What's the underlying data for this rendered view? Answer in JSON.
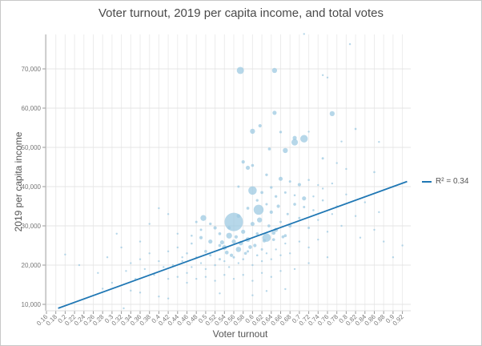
{
  "chart_data": {
    "type": "scatter",
    "title": "Voter turnout, 2019 per capita income, and total votes",
    "xlabel": "Voter turnout",
    "ylabel": "2019 per capita income",
    "xlim": [
      0.16,
      0.93
    ],
    "ylim": [
      8400,
      78700
    ],
    "x_ticks": [
      "0.16",
      "0.18",
      "0.2",
      "0.22",
      "0.24",
      "0.26",
      "0.28",
      "0.3",
      "0.32",
      "0.34",
      "0.36",
      "0.38",
      "0.4",
      "0.42",
      "0.44",
      "0.46",
      "0.48",
      "0.5",
      "0.52",
      "0.54",
      "0.56",
      "0.58",
      "0.6",
      "0.62",
      "0.64",
      "0.66",
      "0.68",
      "0.7",
      "0.72",
      "0.74",
      "0.76",
      "0.78",
      "0.8",
      "0.82",
      "0.84",
      "0.86",
      "0.88",
      "0.9",
      "0.92"
    ],
    "y_ticks": [
      "10,000",
      "20,000",
      "30,000",
      "40,000",
      "50,000",
      "60,000",
      "70,000"
    ],
    "y_tick_values": [
      10000,
      20000,
      30000,
      40000,
      50000,
      60000,
      70000
    ],
    "grid": true,
    "point_color": "#9ecae1",
    "size_field": "total votes",
    "points_fields": [
      "voter turnout",
      "2019 per capita income",
      "total votes"
    ],
    "points": [
      [
        0.574,
        69600,
        180000
      ],
      [
        0.647,
        69600,
        90000
      ],
      [
        0.71,
        78900,
        8000
      ],
      [
        0.808,
        76300,
        6000
      ],
      [
        0.75,
        68400,
        8000
      ],
      [
        0.76,
        67800,
        6000
      ],
      [
        0.647,
        58800,
        60000
      ],
      [
        0.77,
        58600,
        90000
      ],
      [
        0.66,
        53900,
        25000
      ],
      [
        0.616,
        55500,
        40000
      ],
      [
        0.6,
        54100,
        90000
      ],
      [
        0.72,
        54000,
        12000
      ],
      [
        0.82,
        54700,
        15000
      ],
      [
        0.69,
        52400,
        60000
      ],
      [
        0.71,
        52200,
        200000
      ],
      [
        0.69,
        51300,
        150000
      ],
      [
        0.79,
        51500,
        8000
      ],
      [
        0.87,
        51400,
        6000
      ],
      [
        0.67,
        49200,
        90000
      ],
      [
        0.636,
        49600,
        30000
      ],
      [
        0.58,
        46300,
        40000
      ],
      [
        0.59,
        44800,
        60000
      ],
      [
        0.6,
        45400,
        30000
      ],
      [
        0.75,
        47200,
        20000
      ],
      [
        0.78,
        46000,
        8000
      ],
      [
        0.8,
        44500,
        10000
      ],
      [
        0.86,
        43700,
        15000
      ],
      [
        0.63,
        43000,
        25000
      ],
      [
        0.66,
        42000,
        60000
      ],
      [
        0.68,
        41300,
        20000
      ],
      [
        0.7,
        40500,
        40000
      ],
      [
        0.72,
        41700,
        15000
      ],
      [
        0.74,
        40400,
        12000
      ],
      [
        0.77,
        40800,
        10000
      ],
      [
        0.6,
        39000,
        250000
      ],
      [
        0.613,
        34100,
        350000
      ],
      [
        0.56,
        31000,
        1200000
      ],
      [
        0.495,
        32000,
        120000
      ],
      [
        0.62,
        38500,
        30000
      ],
      [
        0.57,
        40000,
        20000
      ],
      [
        0.64,
        39800,
        25000
      ],
      [
        0.31,
        28000,
        6000
      ],
      [
        0.23,
        20000,
        5000
      ],
      [
        0.2,
        22700,
        5000
      ],
      [
        0.27,
        18000,
        4000
      ],
      [
        0.29,
        22000,
        4000
      ],
      [
        0.32,
        24500,
        4000
      ],
      [
        0.34,
        20500,
        5000
      ],
      [
        0.36,
        26000,
        5000
      ],
      [
        0.38,
        30500,
        5000
      ],
      [
        0.4,
        34500,
        6000
      ],
      [
        0.42,
        33000,
        5000
      ],
      [
        0.44,
        28000,
        8000
      ],
      [
        0.45,
        22000,
        6000
      ],
      [
        0.46,
        18000,
        5000
      ],
      [
        0.47,
        25500,
        15000
      ],
      [
        0.48,
        31000,
        20000
      ],
      [
        0.49,
        27000,
        40000
      ],
      [
        0.5,
        23500,
        30000
      ],
      [
        0.51,
        26000,
        60000
      ],
      [
        0.52,
        29500,
        40000
      ],
      [
        0.53,
        21500,
        20000
      ],
      [
        0.54,
        24500,
        80000
      ],
      [
        0.55,
        27500,
        120000
      ],
      [
        0.555,
        22500,
        40000
      ],
      [
        0.56,
        26000,
        60000
      ],
      [
        0.57,
        24000,
        100000
      ],
      [
        0.58,
        28500,
        60000
      ],
      [
        0.585,
        23000,
        30000
      ],
      [
        0.59,
        26500,
        80000
      ],
      [
        0.6,
        30500,
        60000
      ],
      [
        0.605,
        25000,
        40000
      ],
      [
        0.61,
        28000,
        30000
      ],
      [
        0.615,
        31500,
        90000
      ],
      [
        0.62,
        24000,
        20000
      ],
      [
        0.63,
        27000,
        250000
      ],
      [
        0.635,
        30000,
        30000
      ],
      [
        0.64,
        33500,
        40000
      ],
      [
        0.645,
        26500,
        30000
      ],
      [
        0.65,
        29000,
        60000
      ],
      [
        0.655,
        35000,
        40000
      ],
      [
        0.66,
        31000,
        20000
      ],
      [
        0.67,
        27500,
        30000
      ],
      [
        0.675,
        33000,
        20000
      ],
      [
        0.68,
        30000,
        40000
      ],
      [
        0.69,
        35500,
        30000
      ],
      [
        0.7,
        32000,
        20000
      ],
      [
        0.71,
        37000,
        60000
      ],
      [
        0.72,
        29500,
        20000
      ],
      [
        0.73,
        34000,
        15000
      ],
      [
        0.74,
        31500,
        10000
      ],
      [
        0.75,
        36500,
        15000
      ],
      [
        0.76,
        28500,
        8000
      ],
      [
        0.77,
        33000,
        10000
      ],
      [
        0.78,
        35000,
        12000
      ],
      [
        0.79,
        30000,
        6000
      ],
      [
        0.8,
        38000,
        8000
      ],
      [
        0.82,
        32500,
        6000
      ],
      [
        0.84,
        36000,
        5000
      ],
      [
        0.86,
        29000,
        5000
      ],
      [
        0.88,
        26000,
        4000
      ],
      [
        0.9,
        22000,
        4000
      ],
      [
        0.92,
        25000,
        4000
      ],
      [
        0.87,
        33500,
        4000
      ],
      [
        0.83,
        27000,
        5000
      ],
      [
        0.4,
        21000,
        8000
      ],
      [
        0.41,
        19500,
        6000
      ],
      [
        0.42,
        23500,
        10000
      ],
      [
        0.43,
        20000,
        8000
      ],
      [
        0.44,
        24500,
        12000
      ],
      [
        0.45,
        21000,
        10000
      ],
      [
        0.46,
        23000,
        15000
      ],
      [
        0.47,
        19500,
        8000
      ],
      [
        0.48,
        22000,
        12000
      ],
      [
        0.49,
        20500,
        10000
      ],
      [
        0.5,
        19000,
        8000
      ],
      [
        0.51,
        22500,
        20000
      ],
      [
        0.52,
        20000,
        15000
      ],
      [
        0.53,
        25000,
        30000
      ],
      [
        0.54,
        21000,
        12000
      ],
      [
        0.55,
        19500,
        10000
      ],
      [
        0.56,
        22000,
        20000
      ],
      [
        0.57,
        20500,
        12000
      ],
      [
        0.58,
        21500,
        15000
      ],
      [
        0.59,
        23500,
        20000
      ],
      [
        0.6,
        20000,
        10000
      ],
      [
        0.61,
        22500,
        15000
      ],
      [
        0.62,
        21000,
        8000
      ],
      [
        0.63,
        23000,
        12000
      ],
      [
        0.64,
        21500,
        8000
      ],
      [
        0.65,
        24000,
        10000
      ],
      [
        0.66,
        22500,
        8000
      ],
      [
        0.67,
        25500,
        10000
      ],
      [
        0.68,
        23000,
        6000
      ],
      [
        0.7,
        26000,
        8000
      ],
      [
        0.72,
        24500,
        6000
      ],
      [
        0.74,
        26500,
        6000
      ],
      [
        0.36,
        21500,
        6000
      ],
      [
        0.37,
        19000,
        5000
      ],
      [
        0.38,
        23000,
        6000
      ],
      [
        0.39,
        17500,
        5000
      ],
      [
        0.35,
        16500,
        4000
      ],
      [
        0.33,
        18500,
        4000
      ],
      [
        0.3,
        15500,
        4000
      ],
      [
        0.28,
        14000,
        4000
      ],
      [
        0.42,
        16500,
        5000
      ],
      [
        0.44,
        17000,
        6000
      ],
      [
        0.46,
        15500,
        5000
      ],
      [
        0.48,
        16500,
        6000
      ],
      [
        0.5,
        17000,
        6000
      ],
      [
        0.52,
        16000,
        5000
      ],
      [
        0.54,
        17500,
        6000
      ],
      [
        0.56,
        16500,
        5000
      ],
      [
        0.58,
        17500,
        6000
      ],
      [
        0.6,
        16000,
        5000
      ],
      [
        0.62,
        18000,
        5000
      ],
      [
        0.64,
        17000,
        5000
      ],
      [
        0.66,
        18500,
        5000
      ],
      [
        0.69,
        19000,
        5000
      ],
      [
        0.72,
        20500,
        5000
      ],
      [
        0.76,
        22000,
        5000
      ],
      [
        0.34,
        13500,
        4000
      ],
      [
        0.36,
        13000,
        4000
      ],
      [
        0.4,
        12000,
        4000
      ],
      [
        0.42,
        11500,
        4000
      ],
      [
        0.53,
        12800,
        4000
      ],
      [
        0.6,
        12300,
        4000
      ],
      [
        0.63,
        13400,
        4000
      ],
      [
        0.67,
        13900,
        4000
      ],
      [
        0.325,
        9000,
        3000
      ],
      [
        0.47,
        27500,
        15000
      ],
      [
        0.49,
        29000,
        20000
      ],
      [
        0.51,
        30500,
        25000
      ],
      [
        0.53,
        28000,
        30000
      ],
      [
        0.55,
        29500,
        40000
      ],
      [
        0.57,
        32500,
        50000
      ],
      [
        0.59,
        34500,
        30000
      ],
      [
        0.61,
        36500,
        25000
      ],
      [
        0.63,
        35500,
        20000
      ],
      [
        0.65,
        37500,
        25000
      ],
      [
        0.67,
        38500,
        20000
      ],
      [
        0.69,
        37800,
        15000
      ],
      [
        0.71,
        34800,
        20000
      ],
      [
        0.73,
        37500,
        10000
      ],
      [
        0.75,
        39500,
        8000
      ],
      [
        0.535,
        25800,
        60000
      ],
      [
        0.545,
        23200,
        50000
      ],
      [
        0.565,
        27200,
        40000
      ],
      [
        0.575,
        25600,
        70000
      ],
      [
        0.595,
        24600,
        50000
      ],
      [
        0.625,
        26200,
        40000
      ],
      [
        0.645,
        28200,
        50000
      ],
      [
        0.665,
        27200,
        30000
      ]
    ],
    "regression": {
      "label": "R² = 0.34",
      "color": "#1f77b4",
      "r_squared": 0.34,
      "from": [
        0.185,
        9000
      ],
      "to": [
        0.93,
        41300
      ]
    },
    "legend": "right"
  }
}
